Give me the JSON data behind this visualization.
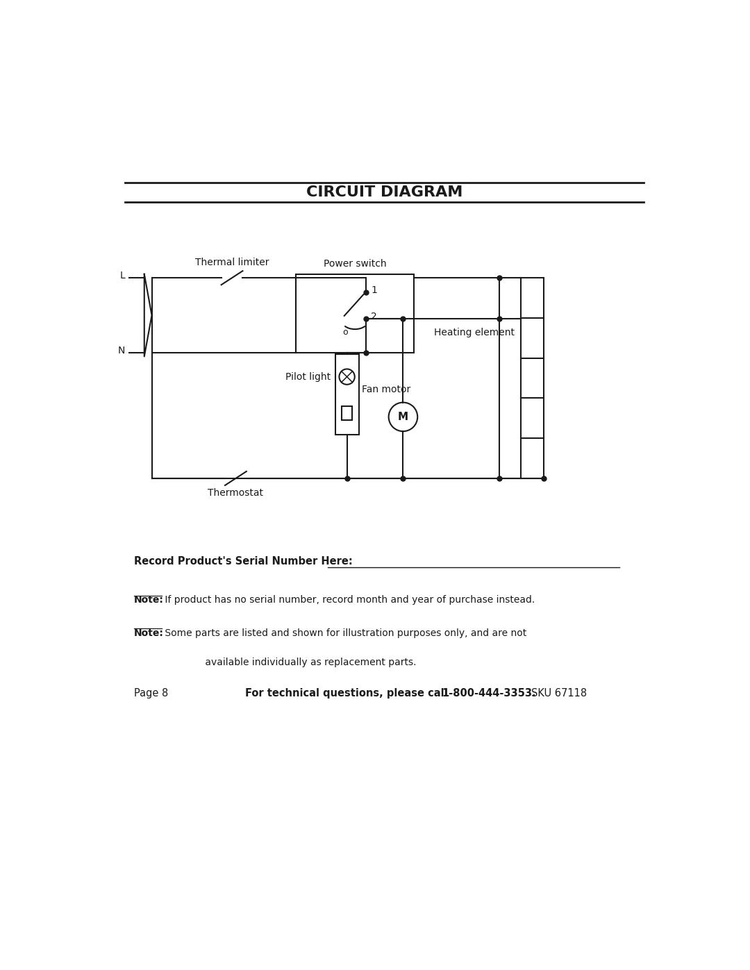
{
  "title": "CIRCUIT DIAGRAM",
  "background_color": "#ffffff",
  "line_color": "#1a1a1a",
  "title_fontsize": 16,
  "label_fontsize": 10,
  "small_fontsize": 9,
  "record_serial_text": "Record Product's Serial Number Here:",
  "note1_bold": "Note:",
  "note1_text": " If product has no serial number, record month and year of purchase instead.",
  "note2_bold": "Note:",
  "note2_text": " Some parts are listed and shown for illustration purposes only, and are not",
  "note2_text2": "         available individually as replacement parts.",
  "footer_page": "Page 8",
  "footer_center": "For technical questions, please call ",
  "footer_phone": "1-800-444-3353.",
  "footer_sku": "SKU 67118",
  "labels": {
    "L": "L",
    "N": "N",
    "thermal_limiter": "Thermal limiter",
    "power_switch": "Power switch",
    "pilot_light": "Pilot light",
    "fan_motor": "Fan motor",
    "heating_element": "Heating element",
    "thermostat": "Thermostat",
    "pos1": "1",
    "pos2": "2",
    "pos0": "o"
  }
}
